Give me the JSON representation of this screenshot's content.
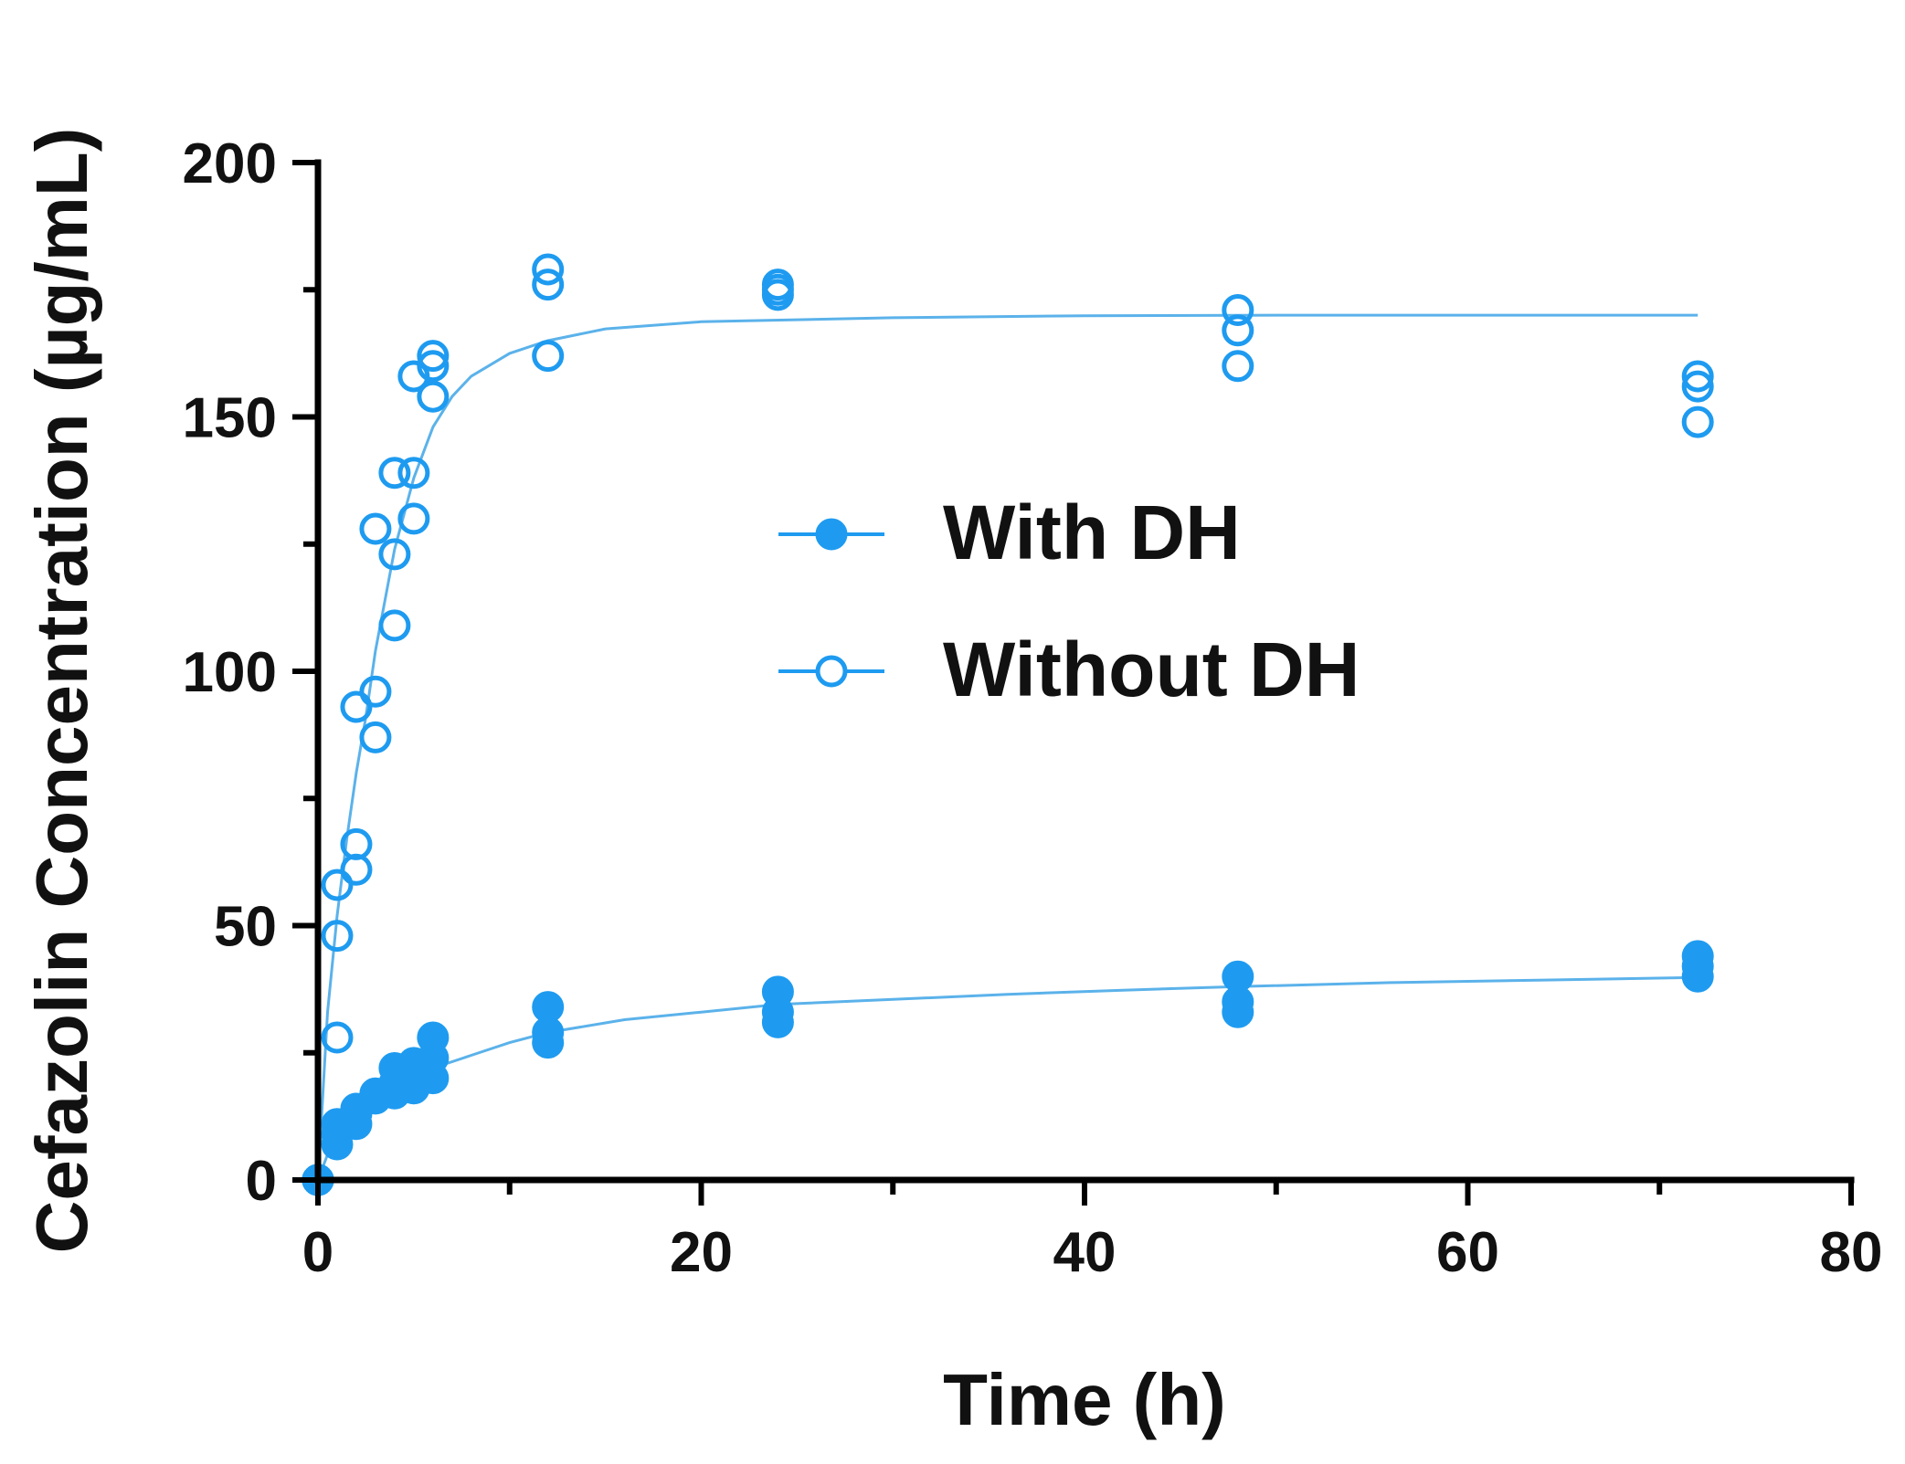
{
  "chart_data": {
    "type": "scatter",
    "title": "",
    "xlabel": "Time (h)",
    "ylabel": "Cefazolin Concentration (µg/mL)",
    "xlim": [
      0,
      80
    ],
    "ylim": [
      0,
      200
    ],
    "x_ticks": [
      0,
      20,
      40,
      60,
      80
    ],
    "y_ticks": [
      0,
      50,
      100,
      150,
      200
    ],
    "x_minor_ticks": [
      10,
      30,
      50,
      70
    ],
    "y_minor_ticks": [
      25,
      75,
      125,
      175
    ],
    "legend_position": "center-right",
    "colors": {
      "series": "#1e9bf0",
      "fit_line": "#5bb2ea",
      "axis": "#000000"
    },
    "series": [
      {
        "name": "With DH",
        "marker": "filled-circle",
        "points": [
          {
            "x": 0,
            "y": 0
          },
          {
            "x": 0,
            "y": 0
          },
          {
            "x": 0,
            "y": 0
          },
          {
            "x": 1,
            "y": 7
          },
          {
            "x": 1,
            "y": 9
          },
          {
            "x": 1,
            "y": 11
          },
          {
            "x": 2,
            "y": 11
          },
          {
            "x": 2,
            "y": 13
          },
          {
            "x": 2,
            "y": 14
          },
          {
            "x": 3,
            "y": 16
          },
          {
            "x": 3,
            "y": 17
          },
          {
            "x": 4,
            "y": 17
          },
          {
            "x": 4,
            "y": 19
          },
          {
            "x": 4,
            "y": 22
          },
          {
            "x": 5,
            "y": 18
          },
          {
            "x": 5,
            "y": 20
          },
          {
            "x": 5,
            "y": 23
          },
          {
            "x": 6,
            "y": 20
          },
          {
            "x": 6,
            "y": 24
          },
          {
            "x": 6,
            "y": 28
          },
          {
            "x": 12,
            "y": 27
          },
          {
            "x": 12,
            "y": 29
          },
          {
            "x": 12,
            "y": 34
          },
          {
            "x": 24,
            "y": 31
          },
          {
            "x": 24,
            "y": 33
          },
          {
            "x": 24,
            "y": 37
          },
          {
            "x": 48,
            "y": 33
          },
          {
            "x": 48,
            "y": 35
          },
          {
            "x": 48,
            "y": 40
          },
          {
            "x": 72,
            "y": 40
          },
          {
            "x": 72,
            "y": 42
          },
          {
            "x": 72,
            "y": 44
          }
        ],
        "fit": [
          {
            "x": 0,
            "y": 0
          },
          {
            "x": 0.5,
            "y": 5
          },
          {
            "x": 1,
            "y": 9
          },
          {
            "x": 2,
            "y": 13
          },
          {
            "x": 3,
            "y": 16
          },
          {
            "x": 4,
            "y": 18
          },
          {
            "x": 5,
            "y": 20
          },
          {
            "x": 6,
            "y": 22
          },
          {
            "x": 8,
            "y": 24.5
          },
          {
            "x": 10,
            "y": 27
          },
          {
            "x": 12,
            "y": 29
          },
          {
            "x": 16,
            "y": 31.5
          },
          {
            "x": 20,
            "y": 33
          },
          {
            "x": 24,
            "y": 34.5
          },
          {
            "x": 30,
            "y": 35.5
          },
          {
            "x": 36,
            "y": 36.5
          },
          {
            "x": 42,
            "y": 37.3
          },
          {
            "x": 48,
            "y": 38
          },
          {
            "x": 56,
            "y": 38.8
          },
          {
            "x": 64,
            "y": 39.3
          },
          {
            "x": 72,
            "y": 39.8
          }
        ]
      },
      {
        "name": "Without DH",
        "marker": "open-circle",
        "points": [
          {
            "x": 0,
            "y": 0
          },
          {
            "x": 0,
            "y": 0
          },
          {
            "x": 0,
            "y": 0
          },
          {
            "x": 1,
            "y": 28
          },
          {
            "x": 1,
            "y": 48
          },
          {
            "x": 1,
            "y": 58
          },
          {
            "x": 2,
            "y": 61
          },
          {
            "x": 2,
            "y": 66
          },
          {
            "x": 2,
            "y": 93
          },
          {
            "x": 3,
            "y": 87
          },
          {
            "x": 3,
            "y": 96
          },
          {
            "x": 3,
            "y": 128
          },
          {
            "x": 4,
            "y": 109
          },
          {
            "x": 4,
            "y": 123
          },
          {
            "x": 4,
            "y": 139
          },
          {
            "x": 5,
            "y": 130
          },
          {
            "x": 5,
            "y": 139
          },
          {
            "x": 5,
            "y": 158
          },
          {
            "x": 6,
            "y": 154
          },
          {
            "x": 6,
            "y": 160
          },
          {
            "x": 6,
            "y": 162
          },
          {
            "x": 12,
            "y": 162
          },
          {
            "x": 12,
            "y": 176
          },
          {
            "x": 12,
            "y": 179
          },
          {
            "x": 24,
            "y": 174
          },
          {
            "x": 24,
            "y": 175
          },
          {
            "x": 24,
            "y": 176
          },
          {
            "x": 48,
            "y": 160
          },
          {
            "x": 48,
            "y": 167
          },
          {
            "x": 48,
            "y": 171
          },
          {
            "x": 72,
            "y": 149
          },
          {
            "x": 72,
            "y": 156
          },
          {
            "x": 72,
            "y": 158
          }
        ],
        "fit": [
          {
            "x": 0,
            "y": 0
          },
          {
            "x": 0.5,
            "y": 33
          },
          {
            "x": 1,
            "y": 52
          },
          {
            "x": 1.5,
            "y": 67
          },
          {
            "x": 2,
            "y": 80
          },
          {
            "x": 2.5,
            "y": 91
          },
          {
            "x": 3,
            "y": 104
          },
          {
            "x": 3.5,
            "y": 114
          },
          {
            "x": 4,
            "y": 124
          },
          {
            "x": 5,
            "y": 138
          },
          {
            "x": 6,
            "y": 148
          },
          {
            "x": 7,
            "y": 154
          },
          {
            "x": 8,
            "y": 158
          },
          {
            "x": 10,
            "y": 162.5
          },
          {
            "x": 12,
            "y": 165
          },
          {
            "x": 15,
            "y": 167.3
          },
          {
            "x": 20,
            "y": 168.7
          },
          {
            "x": 30,
            "y": 169.5
          },
          {
            "x": 40,
            "y": 169.9
          },
          {
            "x": 50,
            "y": 170
          },
          {
            "x": 60,
            "y": 170
          },
          {
            "x": 72,
            "y": 170
          }
        ]
      }
    ]
  }
}
